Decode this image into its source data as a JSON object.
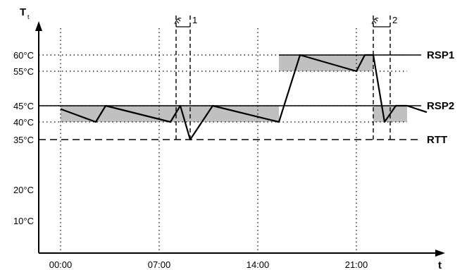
{
  "chart_data": {
    "type": "line",
    "y_axis": {
      "label": "T",
      "label_subscript": "t",
      "ticks": [
        10,
        20,
        35,
        40,
        45,
        55,
        60
      ],
      "tick_labels": [
        "10°C",
        "20°C",
        "35°C",
        "40°C",
        "45°C",
        "55°C",
        "60°C"
      ],
      "unit": "°C"
    },
    "x_axis": {
      "label": "t",
      "ticks": [
        0,
        7,
        14,
        21
      ],
      "tick_labels": [
        "00:00",
        "07:00",
        "14:00",
        "21:00"
      ],
      "unit": "h"
    },
    "reference_lines": [
      {
        "name": "RSP1",
        "value": 60,
        "from": 15.5
      },
      {
        "name": "RSP2",
        "value": 45
      },
      {
        "name": "RTT",
        "value": 35,
        "style": "dashed"
      }
    ],
    "bands": [
      {
        "x": [
          0,
          15.5
        ],
        "y": [
          40,
          45
        ]
      },
      {
        "x": [
          15.5,
          22.2
        ],
        "y": [
          55,
          60
        ]
      },
      {
        "x": [
          22.2,
          26
        ],
        "y": [
          40,
          45
        ]
      }
    ],
    "events": [
      {
        "label": "1",
        "x_start": 8.2,
        "x_end": 9.2
      },
      {
        "label": "2",
        "x_start": 22.2,
        "x_end": 23.4
      }
    ],
    "series": [
      {
        "x": [
          0,
          2.5,
          3.2,
          7.8,
          8.5,
          9.2,
          10.8,
          15.5,
          17.0,
          21.0,
          21.6,
          22.2,
          23.0,
          23.8,
          24.6,
          26.0
        ],
        "y": [
          44,
          40,
          45,
          40,
          45,
          35,
          45,
          40,
          60,
          55,
          60,
          60,
          40,
          45,
          45,
          43
        ]
      }
    ],
    "colors": {
      "band": "#c0c0c0",
      "line": "#000000"
    }
  }
}
